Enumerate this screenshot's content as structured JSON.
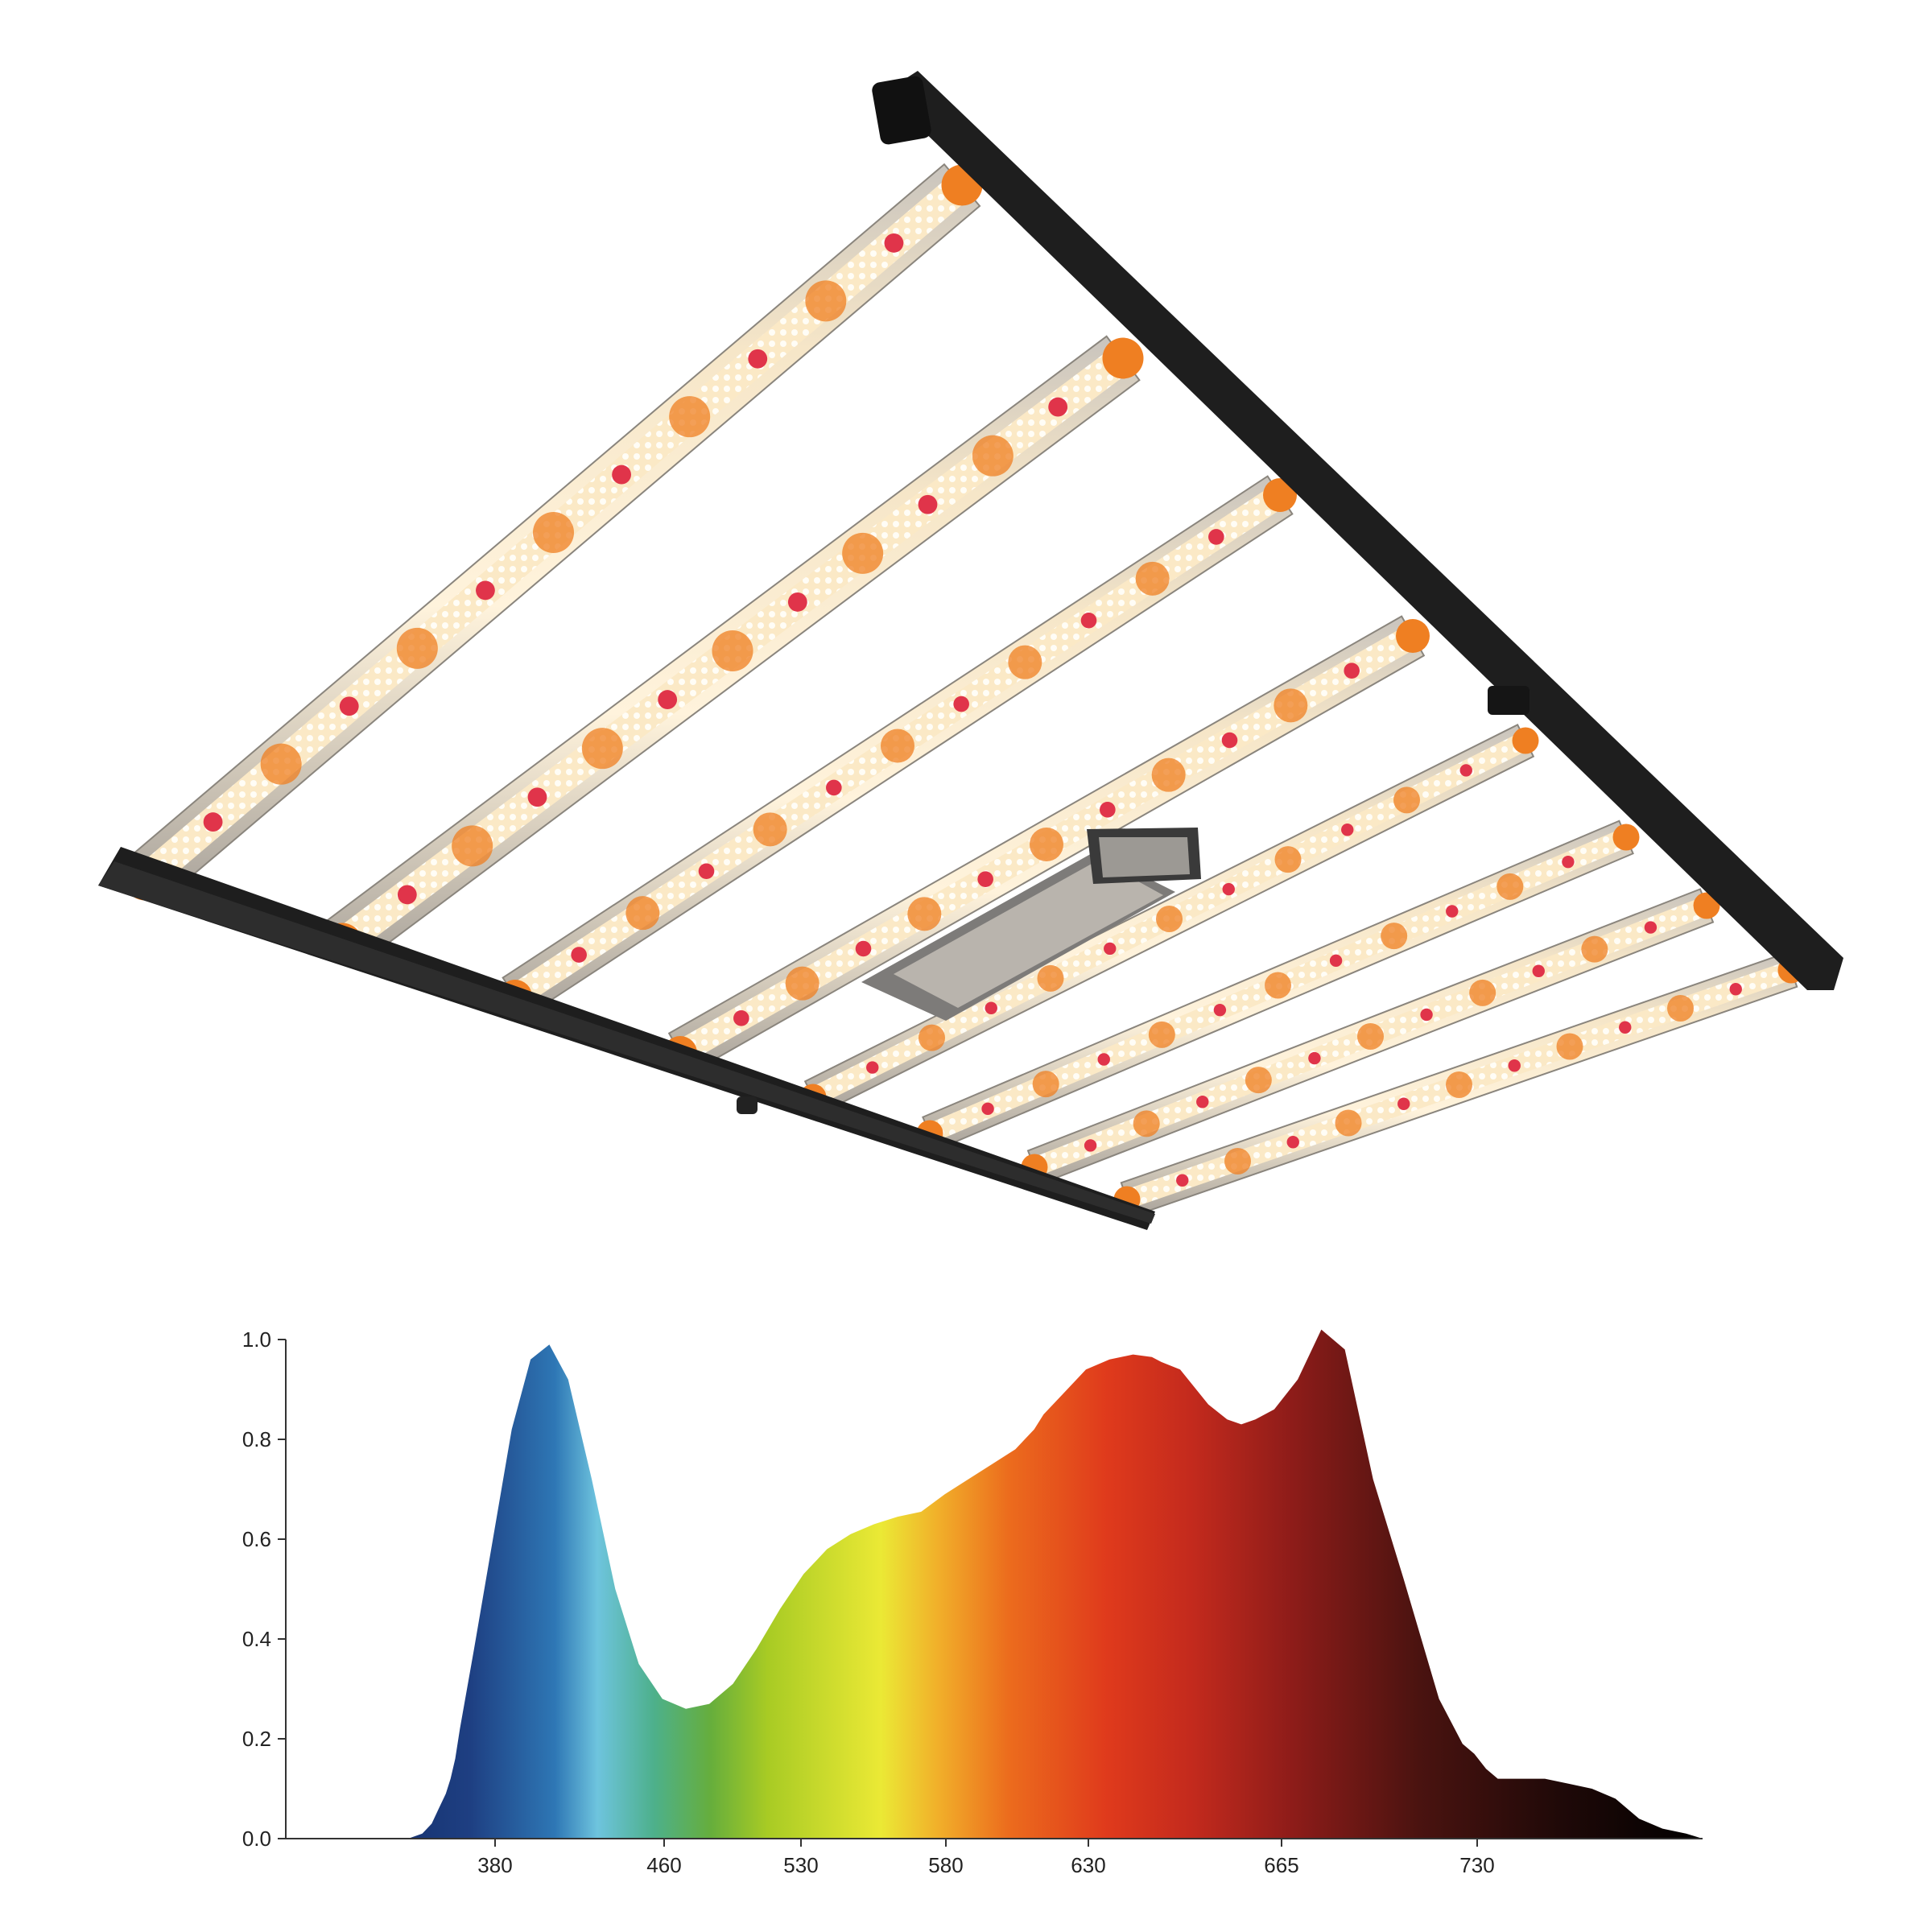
{
  "chart_data": {
    "type": "area",
    "title": "",
    "xlabel": "",
    "ylabel": "",
    "ylim": [
      0.0,
      1.0
    ],
    "yticks": [
      "0.0",
      "0.2",
      "0.4",
      "0.6",
      "0.8",
      "1.0"
    ],
    "xticks": [
      "380",
      "460",
      "530",
      "580",
      "630",
      "665",
      "730"
    ],
    "grid": false,
    "fill": "visible-spectrum color gradient (blue to far-red)",
    "series": [
      {
        "x": [
          1,
          52,
          58,
          62,
          65,
          68,
          70,
          72,
          74,
          80,
          88,
          96,
          104,
          112,
          120,
          130,
          140,
          150,
          160,
          170,
          180,
          190,
          200,
          210,
          220,
          230,
          240,
          250,
          260,
          270,
          280,
          290,
          300,
          310,
          318,
          322,
          330,
          340,
          350,
          360,
          368,
          372,
          380,
          392,
          400,
          406,
          412,
          420,
          430,
          440,
          450,
          462,
          475,
          490,
          500,
          505,
          510,
          515,
          520,
          528,
          535,
          545,
          555,
          565,
          575,
          585,
          595,
          602
        ],
        "values": [
          0.0,
          0.0,
          0.01,
          0.03,
          0.06,
          0.09,
          0.12,
          0.16,
          0.22,
          0.38,
          0.6,
          0.82,
          0.96,
          0.99,
          0.92,
          0.72,
          0.5,
          0.35,
          0.28,
          0.26,
          0.27,
          0.31,
          0.38,
          0.46,
          0.53,
          0.58,
          0.61,
          0.63,
          0.645,
          0.655,
          0.69,
          0.72,
          0.75,
          0.78,
          0.82,
          0.85,
          0.89,
          0.94,
          0.96,
          0.97,
          0.965,
          0.955,
          0.94,
          0.87,
          0.84,
          0.83,
          0.84,
          0.86,
          0.92,
          1.02,
          0.98,
          0.72,
          0.52,
          0.28,
          0.19,
          0.17,
          0.14,
          0.12,
          0.12,
          0.12,
          0.12,
          0.11,
          0.1,
          0.08,
          0.04,
          0.02,
          0.01,
          0.0
        ]
      }
    ]
  }
}
